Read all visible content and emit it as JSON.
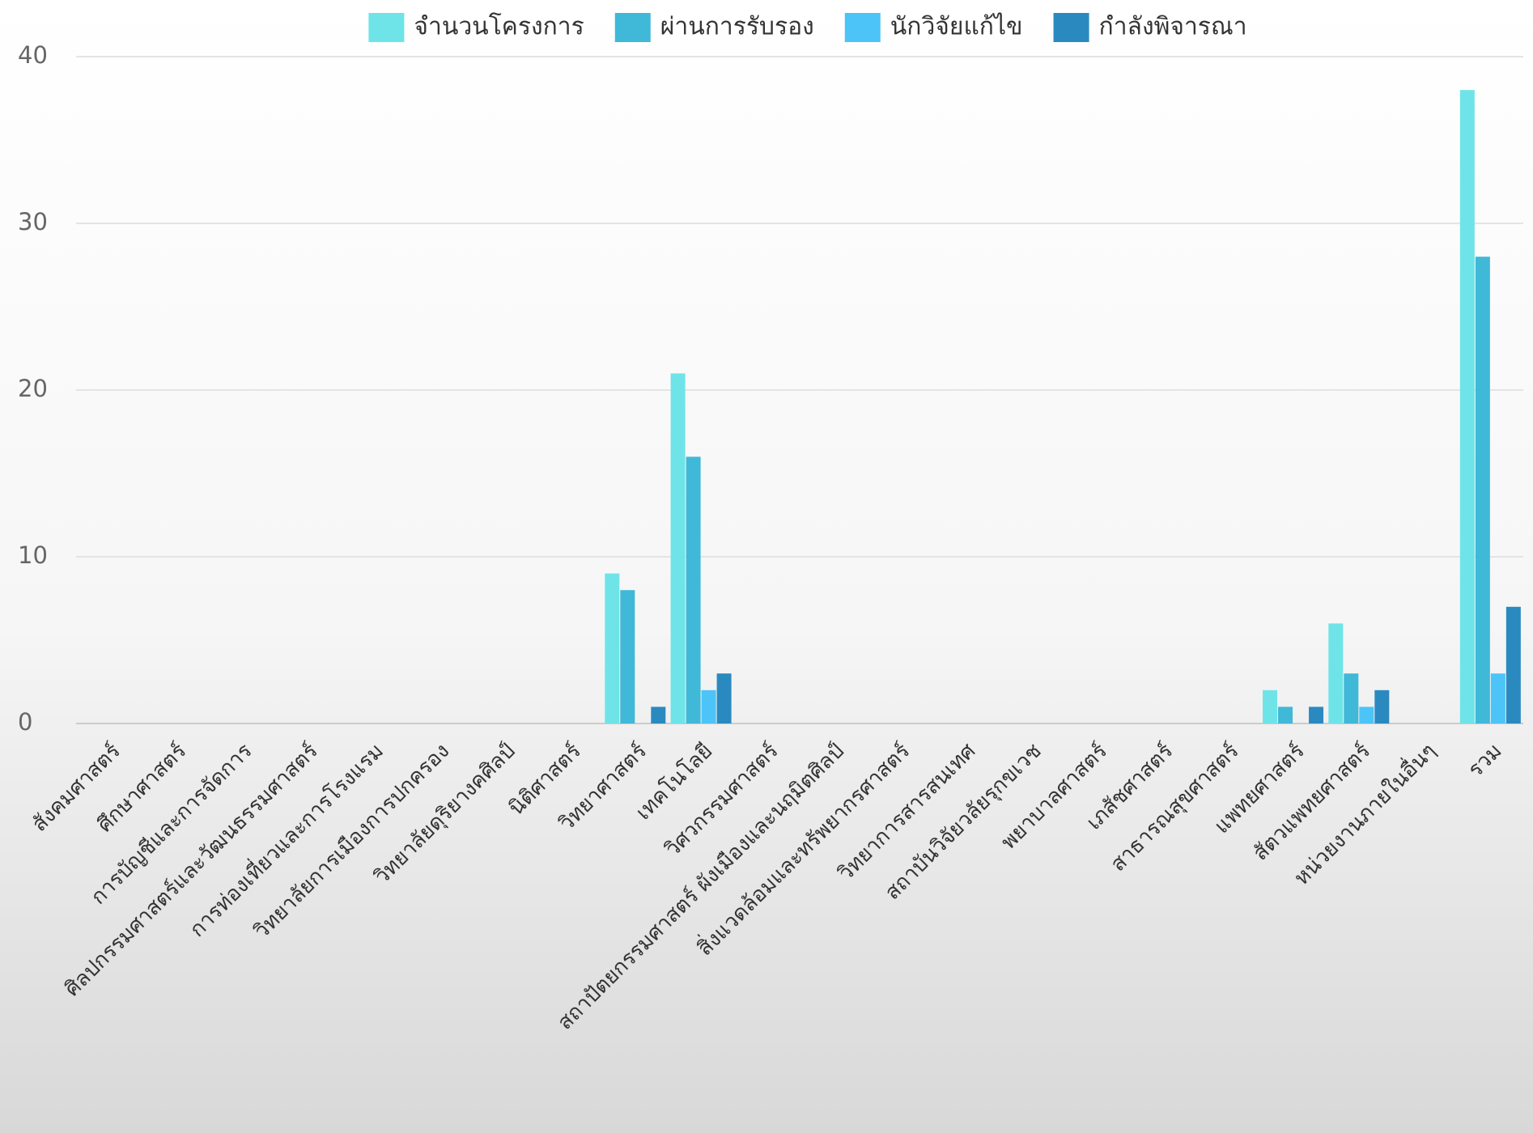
{
  "chart_data": {
    "type": "bar",
    "categories": [
      "สังคมศาสตร์",
      "ศึกษาศาสตร์",
      "การบัญชีและการจัดการ",
      "ศิลปกรรมศาสตร์และวัฒนธรรมศาสตร์",
      "การท่องเที่ยวและการโรงแรม",
      "วิทยาลัยการเมืองการปกครอง",
      "วิทยาลัยดุริยางคศิลป์",
      "นิติศาสตร์",
      "วิทยาศาสตร์",
      "เทคโนโลยี",
      "วิศวกรรมศาสตร์",
      "สถาปัตยกรรมศาสตร์ ผังเมืองและนฤมิตศิลป์",
      "สิ่งแวดล้อมและทรัพยากรศาสตร์",
      "วิทยาการสารสนเทศ",
      "สถาบันวิจัยวลัยรุกขเวช",
      "พยาบาลศาสตร์",
      "เภสัชศาสตร์",
      "สาธารณสุขศาสตร์",
      "แพทยศาสตร์",
      "สัตวแพทยศาสตร์",
      "หน่วยงานภายในอื่นๆ",
      "รวม"
    ],
    "series": [
      {
        "name": "จำนวนโครงการ",
        "color": "#6ee4e8",
        "values": [
          0,
          0,
          0,
          0,
          0,
          0,
          0,
          0,
          9,
          21,
          0,
          0,
          0,
          0,
          0,
          0,
          0,
          0,
          2,
          6,
          0,
          38
        ]
      },
      {
        "name": "ผ่านการรับรอง",
        "color": "#40b8d8",
        "values": [
          0,
          0,
          0,
          0,
          0,
          0,
          0,
          0,
          8,
          16,
          0,
          0,
          0,
          0,
          0,
          0,
          0,
          0,
          1,
          3,
          0,
          28
        ]
      },
      {
        "name": "นักวิจัยแก้ไข",
        "color": "#4cc4f8",
        "values": [
          0,
          0,
          0,
          0,
          0,
          0,
          0,
          0,
          0,
          2,
          0,
          0,
          0,
          0,
          0,
          0,
          0,
          0,
          0,
          1,
          0,
          3
        ]
      },
      {
        "name": "กำลังพิจารณา",
        "color": "#2a8abf",
        "values": [
          0,
          0,
          0,
          0,
          0,
          0,
          0,
          0,
          1,
          3,
          0,
          0,
          0,
          0,
          0,
          0,
          0,
          0,
          1,
          2,
          0,
          7
        ]
      }
    ],
    "ylim": [
      0,
      40
    ],
    "yticks": [
      0,
      10,
      20,
      30,
      40
    ],
    "grid": true,
    "legend": "top"
  }
}
